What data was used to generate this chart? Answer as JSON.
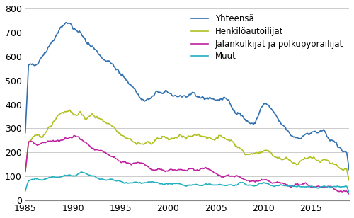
{
  "title": "",
  "series": {
    "Yhteensä": {
      "color": "#3070b0",
      "linewidth": 1.2
    },
    "Henkilöautoilijat": {
      "color": "#b0c020",
      "linewidth": 1.2
    },
    "Jalankulkijat ja polkupyöräilijät": {
      "color": "#c020a0",
      "linewidth": 1.2
    },
    "Muut": {
      "color": "#20b0c0",
      "linewidth": 1.2
    }
  },
  "xlim": [
    1985,
    2019
  ],
  "ylim": [
    0,
    800
  ],
  "yticks": [
    0,
    100,
    200,
    300,
    400,
    500,
    600,
    700,
    800
  ],
  "xticks": [
    1985,
    1990,
    1995,
    2000,
    2005,
    2010,
    2015
  ],
  "grid_color": "#cccccc",
  "background_color": "#ffffff",
  "legend_loc": "upper right",
  "font_size": 9
}
